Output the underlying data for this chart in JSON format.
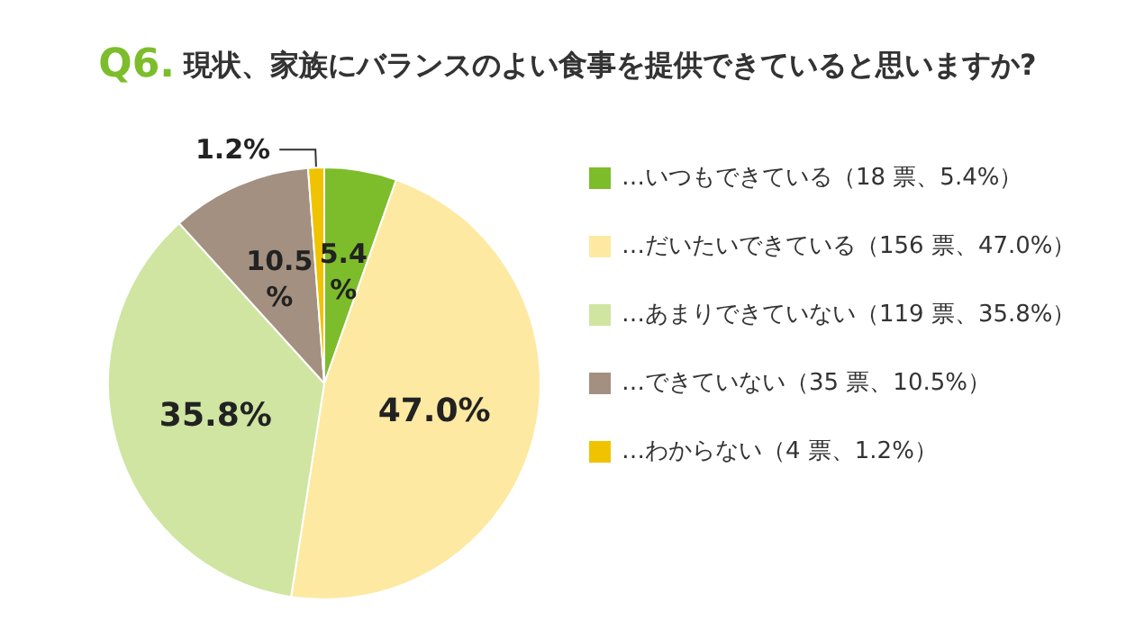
{
  "chart_data": {
    "type": "pie",
    "title": "Q6. 現状、家族にバランスのよい食事を提供できていると思いますか?",
    "categories": [
      "…いつもできている（18 票、5.4%）",
      "…だいたいできている（156 票、47.0%）",
      "…あまりできていない（119 票、35.8%）",
      "…できていない（35 票、10.5%）",
      "…わからない（4 票、1.2%）"
    ],
    "values": [
      5.4,
      47.0,
      35.8,
      10.5,
      1.2
    ],
    "value_labels": [
      "5.4%",
      "47.0%",
      "35.8%",
      "10.5%",
      "1.2%"
    ],
    "colors": [
      "#7dbd2c",
      "#fde9a2",
      "#cfe5a1",
      "#a39080",
      "#efc300"
    ],
    "legend": "right"
  }
}
